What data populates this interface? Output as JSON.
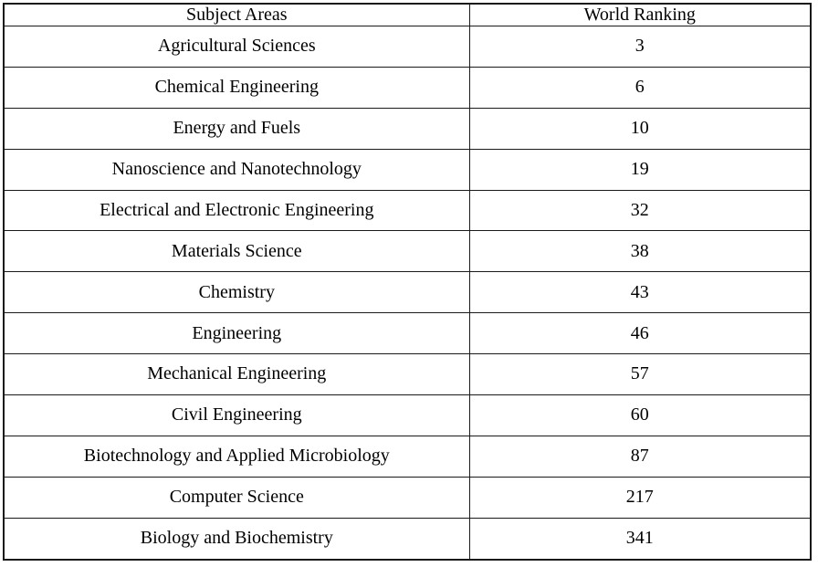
{
  "chart_data": {
    "type": "table",
    "title": "",
    "columns": [
      "Subject Areas",
      "World Ranking"
    ],
    "rows": [
      [
        "Agricultural Sciences",
        3
      ],
      [
        "Chemical Engineering",
        6
      ],
      [
        "Energy and Fuels",
        10
      ],
      [
        "Nanoscience and Nanotechnology",
        19
      ],
      [
        "Electrical and Electronic Engineering",
        32
      ],
      [
        "Materials Science",
        38
      ],
      [
        "Chemistry",
        43
      ],
      [
        "Engineering",
        46
      ],
      [
        "Mechanical Engineering",
        57
      ],
      [
        "Civil Engineering",
        60
      ],
      [
        "Biotechnology and Applied Microbiology",
        87
      ],
      [
        "Computer Science",
        217
      ],
      [
        "Biology and Biochemistry",
        341
      ]
    ],
    "layout": {
      "grid": "on",
      "cell_text_align": "center"
    }
  },
  "colors": {
    "border": "#1a1a1a",
    "text": "#000000",
    "background": "#ffffff"
  }
}
